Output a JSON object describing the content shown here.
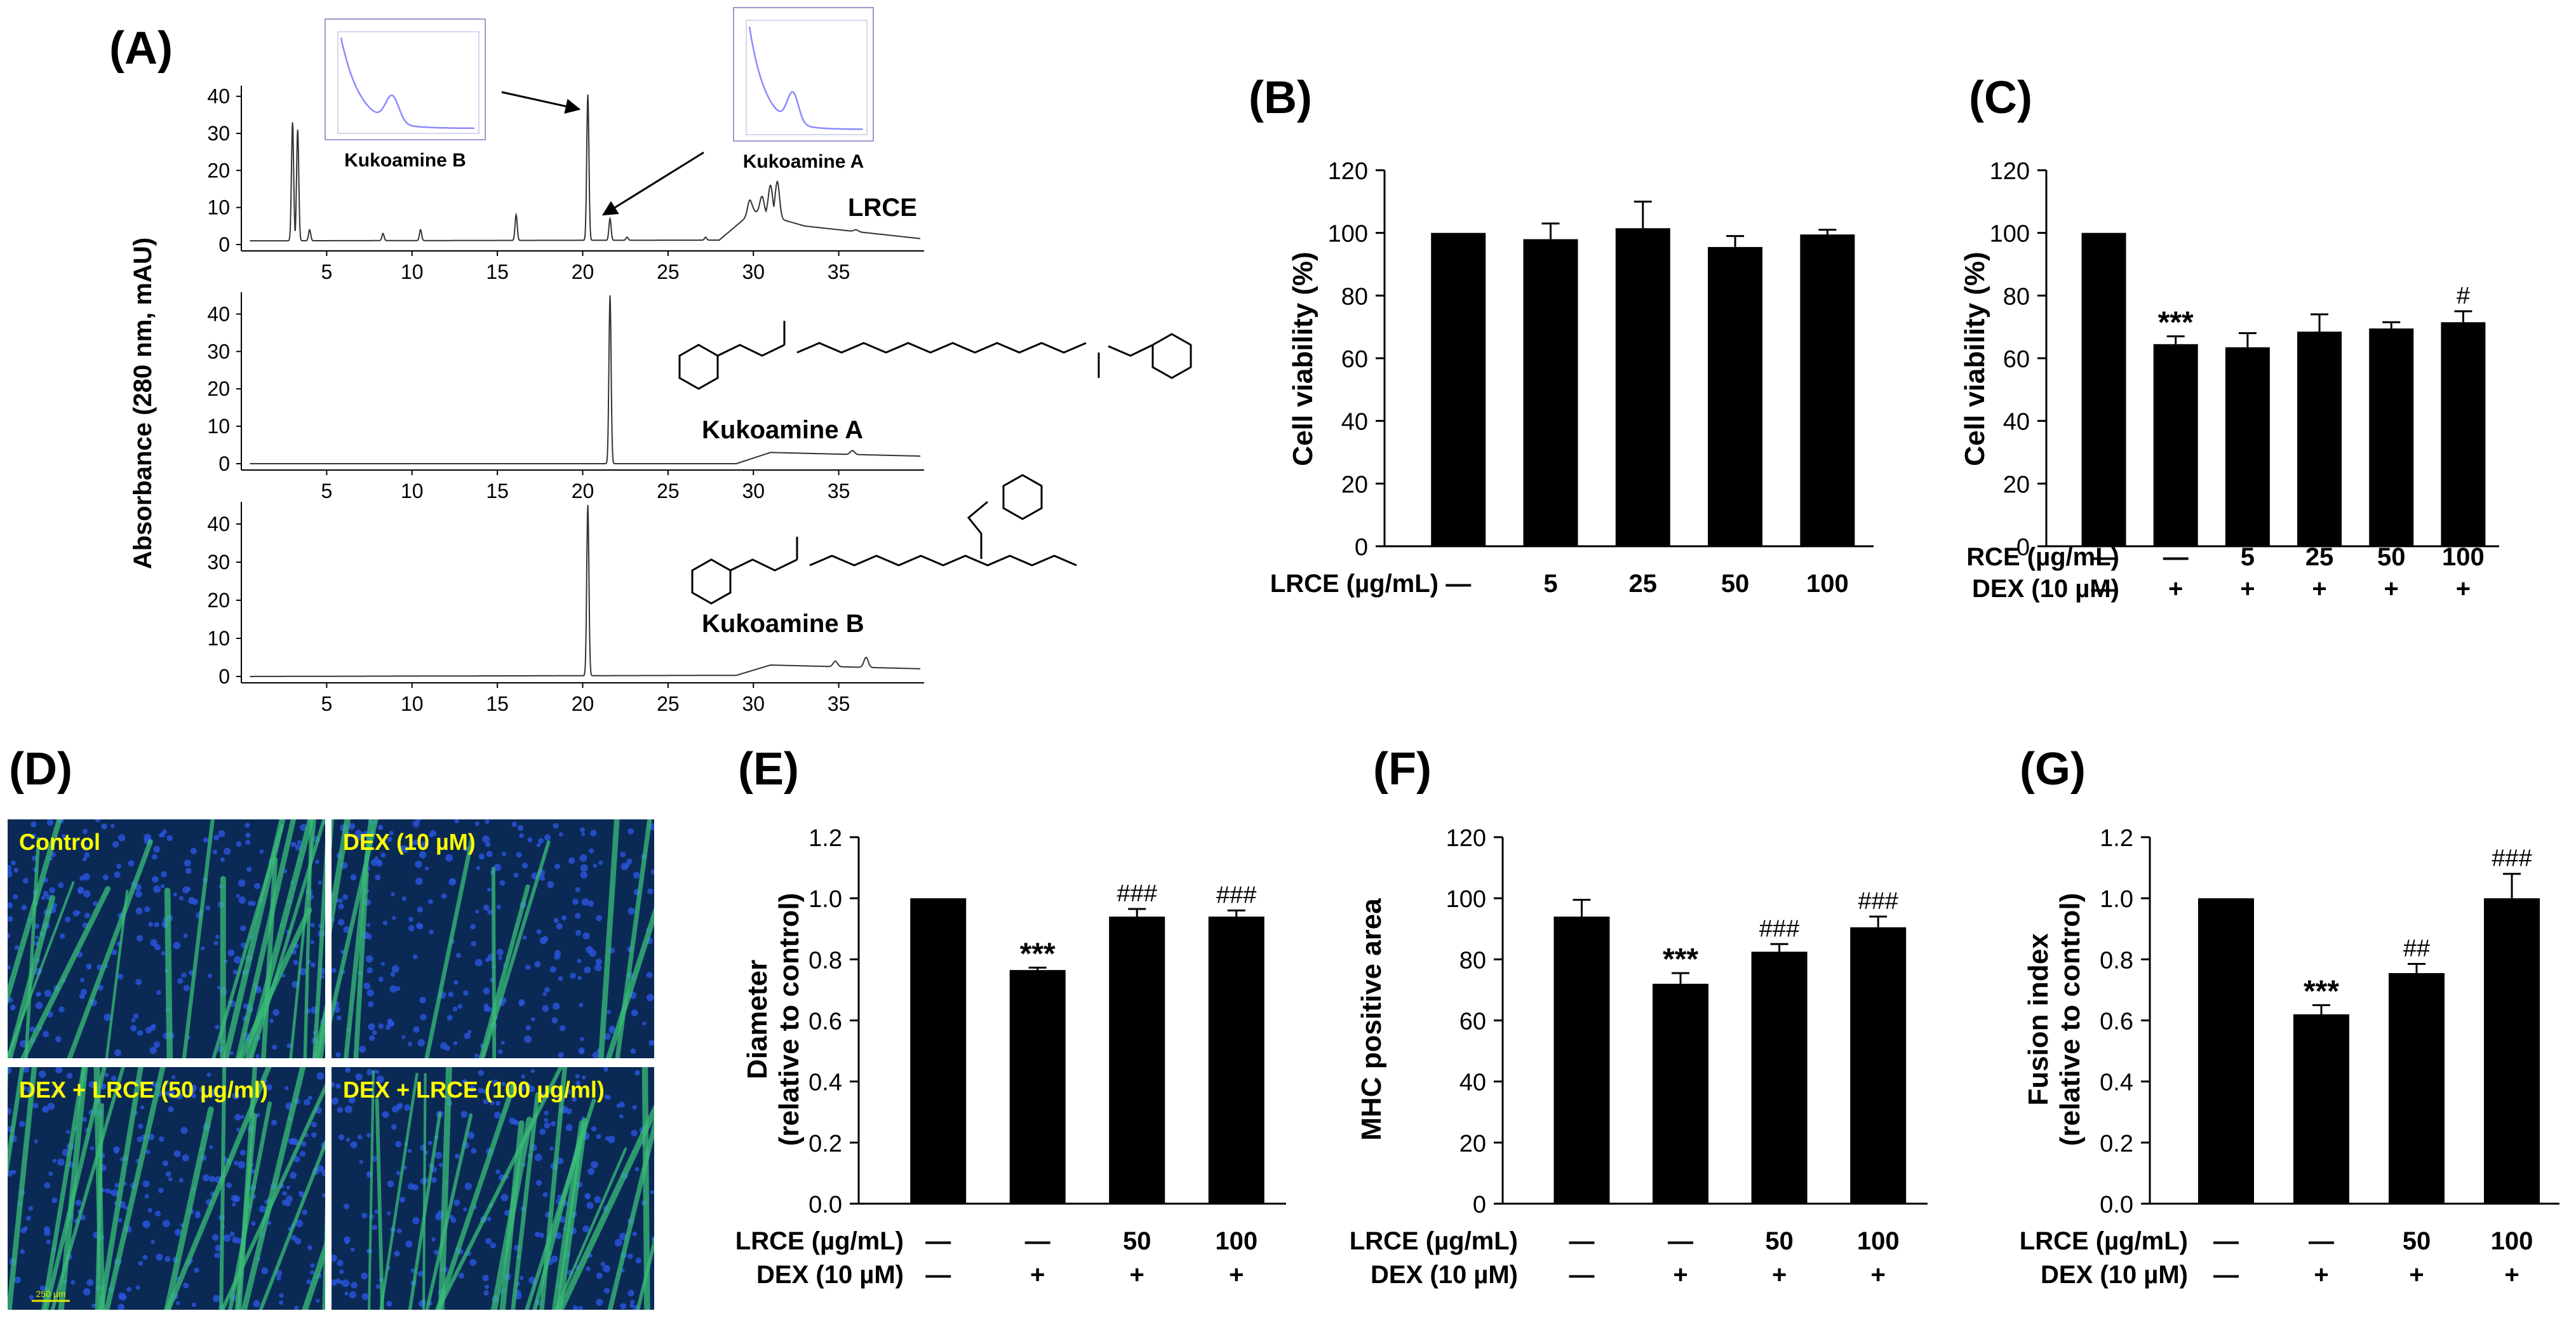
{
  "panels": {
    "A": "(A)",
    "B": "(B)",
    "C": "(C)",
    "D": "(D)",
    "E": "(E)",
    "F": "(F)",
    "G": "(G)"
  },
  "colors": {
    "bar": "#000000",
    "trace": "#333333",
    "uv_line": "#8a8aff",
    "micro_bg": "#0a2a55",
    "micro_fiber": "#3bbd78",
    "micro_label": "#ffff00"
  },
  "chart_data": [
    {
      "panel": "A",
      "type": "line",
      "title": "",
      "xlabel": "",
      "ylabel": "Absorbance (280 nm, mAU)",
      "xlim": [
        0,
        40
      ],
      "xticks": [
        5,
        10,
        15,
        20,
        25,
        30,
        35
      ],
      "subplots": [
        {
          "label": "LRCE",
          "ylim": [
            0,
            42
          ],
          "yticks": [
            0,
            10,
            20,
            30,
            40
          ],
          "peaks": [
            {
              "x": 3.0,
              "y": 33
            },
            {
              "x": 3.3,
              "y": 31
            },
            {
              "x": 4.0,
              "y": 4
            },
            {
              "x": 8.3,
              "y": 3
            },
            {
              "x": 10.5,
              "y": 4
            },
            {
              "x": 16.1,
              "y": 8
            },
            {
              "x": 20.3,
              "y": 40.5
            },
            {
              "x": 21.6,
              "y": 7
            },
            {
              "x": 22.6,
              "y": 2
            },
            {
              "x": 27.2,
              "y": 2
            },
            {
              "x": 29.8,
              "y": 12
            },
            {
              "x": 30.5,
              "y": 13
            },
            {
              "x": 31.0,
              "y": 16
            },
            {
              "x": 31.4,
              "y": 17
            },
            {
              "x": 32.0,
              "y": 6
            },
            {
              "x": 33.6,
              "y": 3
            },
            {
              "x": 36.0,
              "y": 4
            }
          ],
          "baseline": [
            {
              "x": 0,
              "y": 1
            },
            {
              "x": 28,
              "y": 1.2
            },
            {
              "x": 30,
              "y": 9
            },
            {
              "x": 33,
              "y": 5
            },
            {
              "x": 40,
              "y": 1.5
            }
          ],
          "insets": [
            {
              "name": "Kukoamine B",
              "arrow_to_peak_x": 20.3
            },
            {
              "name": "Kukoamine A",
              "arrow_to_peak_x": 21.6
            }
          ]
        },
        {
          "label": "Kukoamine A",
          "ylim": [
            0,
            45
          ],
          "yticks": [
            0,
            10,
            20,
            30,
            40
          ],
          "peaks": [
            {
              "x": 21.6,
              "y": 45
            },
            {
              "x": 35.8,
              "y": 3.5
            }
          ],
          "baseline": [
            {
              "x": 0,
              "y": 0
            },
            {
              "x": 29,
              "y": 0
            },
            {
              "x": 31,
              "y": 3
            },
            {
              "x": 40,
              "y": 2
            }
          ]
        },
        {
          "label": "Kukoamine B",
          "ylim": [
            0,
            45
          ],
          "yticks": [
            0,
            10,
            20,
            30,
            40
          ],
          "peaks": [
            {
              "x": 20.3,
              "y": 45
            },
            {
              "x": 34.8,
              "y": 4
            },
            {
              "x": 36.6,
              "y": 5
            }
          ],
          "baseline": [
            {
              "x": 0,
              "y": 0
            },
            {
              "x": 29,
              "y": 0.3
            },
            {
              "x": 31,
              "y": 3
            },
            {
              "x": 40,
              "y": 2
            }
          ]
        }
      ]
    },
    {
      "panel": "B",
      "type": "bar",
      "ylabel": "Cell viability (%)",
      "ylim": [
        0,
        120
      ],
      "yticks": [
        0,
        20,
        40,
        60,
        80,
        100,
        120
      ],
      "row_labels": [
        "LRCE (µg/mL)"
      ],
      "categories": [
        "—",
        "5",
        "25",
        "50",
        "100"
      ],
      "values": [
        100,
        98,
        101.5,
        95.5,
        99.5
      ],
      "errors": [
        0,
        5,
        8.5,
        3.5,
        1.5
      ],
      "annotations": [
        "",
        "",
        "",
        "",
        ""
      ]
    },
    {
      "panel": "C",
      "type": "bar",
      "ylabel": "Cell viability (%)",
      "ylim": [
        0,
        120
      ],
      "yticks": [
        0,
        20,
        40,
        60,
        80,
        100,
        120
      ],
      "row_labels": [
        "RCE (µg/mL)",
        "DEX (10 µM)"
      ],
      "categories": [
        "—",
        "—",
        "5",
        "25",
        "50",
        "100"
      ],
      "categories2": [
        "—",
        "+",
        "+",
        "+",
        "+",
        "+"
      ],
      "values": [
        100,
        64.5,
        63.5,
        68.5,
        69.5,
        71.5
      ],
      "errors": [
        0,
        2.5,
        4.5,
        5.5,
        2,
        3.5
      ],
      "annotations": [
        "",
        "***",
        "",
        "",
        "",
        "#"
      ]
    },
    {
      "panel": "E",
      "type": "bar",
      "ylabel": "Diameter\n(relative to control)",
      "ylim": [
        0,
        1.2
      ],
      "yticks": [
        "0.0",
        "0.2",
        "0.4",
        "0.6",
        "0.8",
        "1.0",
        "1.2"
      ],
      "row_labels": [
        "LRCE (µg/mL)",
        "DEX (10 µM)"
      ],
      "categories": [
        "—",
        "—",
        "50",
        "100"
      ],
      "categories2": [
        "—",
        "+",
        "+",
        "+"
      ],
      "values": [
        1.0,
        0.765,
        0.94,
        0.94
      ],
      "errors": [
        0,
        0.008,
        0.025,
        0.02
      ],
      "annotations": [
        "",
        "***",
        "###",
        "###"
      ]
    },
    {
      "panel": "F",
      "type": "bar",
      "ylabel": "MHC positive area",
      "ylim": [
        0,
        120
      ],
      "yticks": [
        0,
        20,
        40,
        60,
        80,
        100,
        120
      ],
      "row_labels": [
        "LRCE (µg/mL)",
        "DEX (10 µM)"
      ],
      "categories": [
        "—",
        "—",
        "50",
        "100"
      ],
      "categories2": [
        "—",
        "+",
        "+",
        "+"
      ],
      "values": [
        94,
        72,
        82.5,
        90.5
      ],
      "errors": [
        5.5,
        3.5,
        2.5,
        3.5
      ],
      "annotations": [
        "",
        "***",
        "###",
        "###"
      ]
    },
    {
      "panel": "G",
      "type": "bar",
      "ylabel": "Fusion index\n(relative to control)",
      "ylim": [
        0,
        1.2
      ],
      "yticks": [
        "0.0",
        "0.2",
        "0.4",
        "0.6",
        "0.8",
        "1.0",
        "1.2"
      ],
      "row_labels": [
        "LRCE (µg/mL)",
        "DEX (10 µM)"
      ],
      "categories": [
        "—",
        "—",
        "50",
        "100"
      ],
      "categories2": [
        "—",
        "+",
        "+",
        "+"
      ],
      "values": [
        1.0,
        0.62,
        0.755,
        1.0
      ],
      "errors": [
        0,
        0.03,
        0.03,
        0.08
      ],
      "annotations": [
        "",
        "***",
        "##",
        "###"
      ]
    }
  ],
  "micrographs": [
    {
      "label": "Control"
    },
    {
      "label": "DEX (10 µM)"
    },
    {
      "label": "DEX + LRCE (50 µg/ml)"
    },
    {
      "label": "DEX + LRCE (100 µg/ml)"
    }
  ],
  "scale_bar": "250 µm"
}
